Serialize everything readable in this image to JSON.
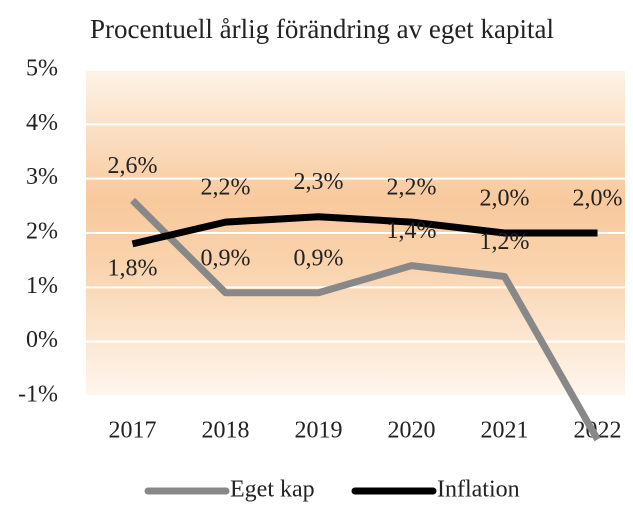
{
  "chart_data": {
    "type": "line",
    "title": "Procentuell årlig förändring av eget kapital",
    "categories": [
      "2017",
      "2018",
      "2019",
      "2020",
      "2021",
      "2022"
    ],
    "series": [
      {
        "name": "Eget kap",
        "color": "#888888",
        "values": [
          2.6,
          0.9,
          0.9,
          1.4,
          1.2,
          -1.8
        ],
        "value_labels": [
          "2,6%",
          "0,9%",
          "0,9%",
          "1,4%",
          "1,2%",
          null
        ]
      },
      {
        "name": "Inflation",
        "color": "#000000",
        "values": [
          1.8,
          2.2,
          2.3,
          2.2,
          2.0,
          2.0
        ],
        "value_labels": [
          "1,8%",
          "2,2%",
          "2,3%",
          "2,2%",
          "2,0%",
          "2,0%"
        ]
      }
    ],
    "ylim": [
      -1,
      5
    ],
    "yticks": [
      {
        "value": -1,
        "label": "-1%"
      },
      {
        "value": 0,
        "label": "0%"
      },
      {
        "value": 1,
        "label": "1%"
      },
      {
        "value": 2,
        "label": "2%"
      },
      {
        "value": 3,
        "label": "3%"
      },
      {
        "value": 4,
        "label": "4%"
      },
      {
        "value": 5,
        "label": "5%"
      }
    ],
    "grid": true
  }
}
